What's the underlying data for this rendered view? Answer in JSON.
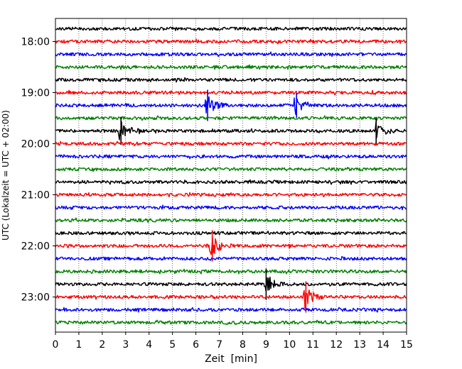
{
  "chart_data": {
    "type": "line",
    "title": "",
    "xlabel": "Zeit  [min]",
    "ylabel": "UTC (Lokalzeit = UTC + 02:00)",
    "xlim": [
      0,
      15
    ],
    "x_ticks": [
      "0",
      "1",
      "2",
      "3",
      "4",
      "5",
      "6",
      "7",
      "8",
      "9",
      "10",
      "11",
      "12",
      "13",
      "14",
      "15"
    ],
    "y_ticks": [
      "18:00",
      "19:00",
      "20:00",
      "21:00",
      "22:00",
      "23:00"
    ],
    "grid": "vertical dotted lines at each minute",
    "trace_interval_min": 15,
    "colors": [
      "#000000",
      "#ff0000",
      "#0000ff",
      "#008000"
    ],
    "traces": [
      {
        "start": "17:45",
        "color": "#000000"
      },
      {
        "start": "18:00",
        "color": "#ff0000"
      },
      {
        "start": "18:15",
        "color": "#0000ff"
      },
      {
        "start": "18:30",
        "color": "#008000"
      },
      {
        "start": "18:45",
        "color": "#000000"
      },
      {
        "start": "19:00",
        "color": "#ff0000"
      },
      {
        "start": "19:15",
        "color": "#0000ff",
        "events": [
          {
            "t": 6.5,
            "amp": 1.0
          },
          {
            "t": 10.3,
            "amp": 0.8
          }
        ]
      },
      {
        "start": "19:30",
        "color": "#008000"
      },
      {
        "start": "19:45",
        "color": "#000000",
        "events": [
          {
            "t": 2.8,
            "amp": 0.9
          },
          {
            "t": 13.7,
            "amp": 0.9
          }
        ]
      },
      {
        "start": "20:00",
        "color": "#ff0000"
      },
      {
        "start": "20:15",
        "color": "#0000ff"
      },
      {
        "start": "20:30",
        "color": "#008000"
      },
      {
        "start": "20:45",
        "color": "#000000"
      },
      {
        "start": "21:00",
        "color": "#ff0000"
      },
      {
        "start": "21:15",
        "color": "#0000ff"
      },
      {
        "start": "21:30",
        "color": "#008000"
      },
      {
        "start": "21:45",
        "color": "#000000"
      },
      {
        "start": "22:00",
        "color": "#ff0000",
        "events": [
          {
            "t": 6.7,
            "amp": 1.0
          }
        ]
      },
      {
        "start": "22:15",
        "color": "#0000ff"
      },
      {
        "start": "22:30",
        "color": "#008000"
      },
      {
        "start": "22:45",
        "color": "#000000",
        "events": [
          {
            "t": 9.0,
            "amp": 1.0
          }
        ]
      },
      {
        "start": "23:00",
        "color": "#ff0000",
        "events": [
          {
            "t": 10.7,
            "amp": 1.0
          }
        ]
      },
      {
        "start": "23:15",
        "color": "#0000ff"
      },
      {
        "start": "23:30",
        "color": "#008000"
      }
    ]
  }
}
